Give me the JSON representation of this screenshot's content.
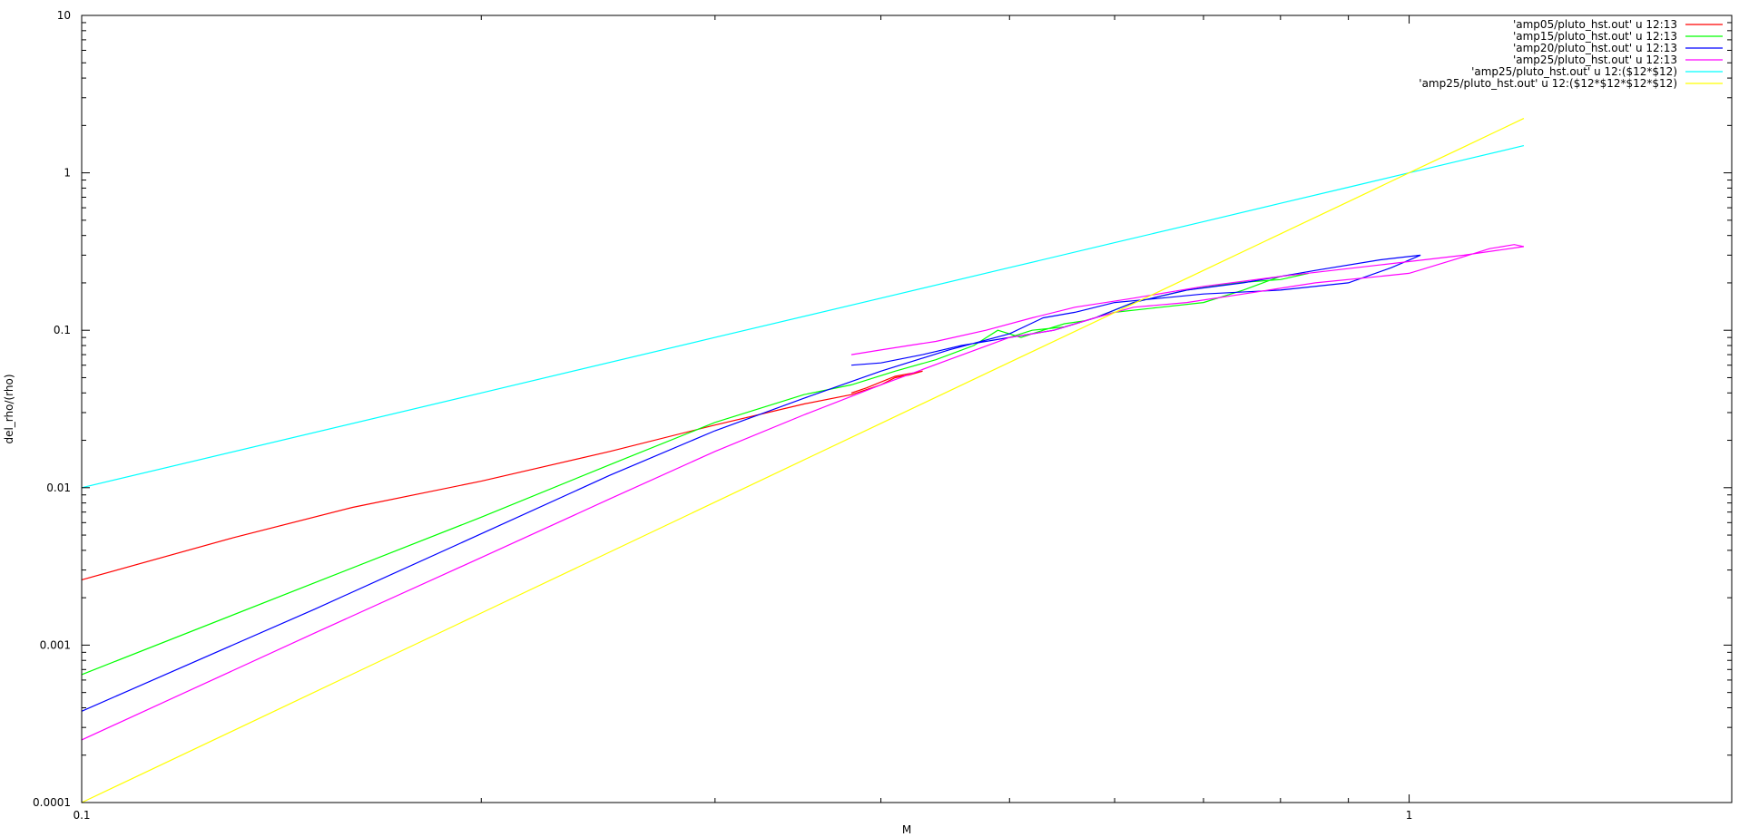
{
  "chart_data": {
    "type": "line",
    "title": "",
    "xlabel": "M",
    "ylabel": "del_rho/(rho)",
    "xscale": "log",
    "yscale": "log",
    "xlim": [
      0.1,
      1.75
    ],
    "ylim": [
      0.0001,
      10
    ],
    "grid": false,
    "legend_position": "top-right",
    "xticks": [
      {
        "value": 0.1,
        "label": "0.1"
      },
      {
        "value": 1,
        "label": "1"
      }
    ],
    "xminor": [
      0.2,
      0.3,
      0.4,
      0.5,
      0.6,
      0.7,
      0.8,
      0.9
    ],
    "yticks": [
      {
        "value": 0.0001,
        "label": "0.0001"
      },
      {
        "value": 0.001,
        "label": "0.001"
      },
      {
        "value": 0.01,
        "label": "0.01"
      },
      {
        "value": 0.1,
        "label": "0.1"
      },
      {
        "value": 1,
        "label": "1"
      },
      {
        "value": 10,
        "label": "10"
      }
    ],
    "series": [
      {
        "name": "'amp05/pluto_hst.out' u 12:13",
        "color": "#ff0000",
        "points": [
          [
            0.1,
            0.0026
          ],
          [
            0.13,
            0.0048
          ],
          [
            0.16,
            0.0075
          ],
          [
            0.2,
            0.011
          ],
          [
            0.25,
            0.017
          ],
          [
            0.3,
            0.025
          ],
          [
            0.35,
            0.034
          ],
          [
            0.38,
            0.039
          ],
          [
            0.4,
            0.045
          ],
          [
            0.41,
            0.05
          ],
          [
            0.42,
            0.052
          ],
          [
            0.43,
            0.055
          ],
          [
            0.41,
            0.051
          ],
          [
            0.39,
            0.043
          ],
          [
            0.38,
            0.04
          ]
        ]
      },
      {
        "name": "'amp15/pluto_hst.out' u 12:13",
        "color": "#00ff00",
        "points": [
          [
            0.1,
            0.00065
          ],
          [
            0.15,
            0.0025
          ],
          [
            0.2,
            0.0065
          ],
          [
            0.25,
            0.014
          ],
          [
            0.3,
            0.026
          ],
          [
            0.35,
            0.039
          ],
          [
            0.38,
            0.045
          ],
          [
            0.41,
            0.055
          ],
          [
            0.44,
            0.065
          ],
          [
            0.47,
            0.08
          ],
          [
            0.49,
            0.1
          ],
          [
            0.51,
            0.09
          ],
          [
            0.53,
            0.1
          ],
          [
            0.55,
            0.11
          ],
          [
            0.57,
            0.115
          ],
          [
            0.6,
            0.13
          ],
          [
            0.65,
            0.14
          ],
          [
            0.7,
            0.15
          ],
          [
            0.75,
            0.18
          ],
          [
            0.8,
            0.22
          ],
          [
            0.84,
            0.23
          ],
          [
            0.8,
            0.21
          ],
          [
            0.74,
            0.2
          ],
          [
            0.68,
            0.18
          ],
          [
            0.62,
            0.15
          ],
          [
            0.58,
            0.12
          ],
          [
            0.55,
            0.105
          ],
          [
            0.52,
            0.1
          ],
          [
            0.5,
            0.09
          ]
        ]
      },
      {
        "name": "'amp20/pluto_hst.out' u 12:13",
        "color": "#0000ff",
        "points": [
          [
            0.1,
            0.00038
          ],
          [
            0.15,
            0.0017
          ],
          [
            0.2,
            0.0051
          ],
          [
            0.25,
            0.012
          ],
          [
            0.3,
            0.023
          ],
          [
            0.35,
            0.037
          ],
          [
            0.4,
            0.055
          ],
          [
            0.45,
            0.075
          ],
          [
            0.5,
            0.095
          ],
          [
            0.53,
            0.12
          ],
          [
            0.56,
            0.13
          ],
          [
            0.6,
            0.15
          ],
          [
            0.65,
            0.16
          ],
          [
            0.7,
            0.17
          ],
          [
            0.8,
            0.18
          ],
          [
            0.9,
            0.2
          ],
          [
            0.97,
            0.25
          ],
          [
            1.02,
            0.3
          ],
          [
            0.95,
            0.28
          ],
          [
            0.85,
            0.24
          ],
          [
            0.75,
            0.2
          ],
          [
            0.68,
            0.18
          ],
          [
            0.62,
            0.15
          ],
          [
            0.58,
            0.12
          ],
          [
            0.54,
            0.1
          ],
          [
            0.5,
            0.09
          ],
          [
            0.46,
            0.08
          ],
          [
            0.43,
            0.07
          ],
          [
            0.4,
            0.062
          ],
          [
            0.38,
            0.06
          ]
        ]
      },
      {
        "name": "'amp25/pluto_hst.out' u 12:13",
        "color": "#ff00ff",
        "points": [
          [
            0.1,
            0.00025
          ],
          [
            0.15,
            0.0012
          ],
          [
            0.2,
            0.0036
          ],
          [
            0.25,
            0.0085
          ],
          [
            0.3,
            0.017
          ],
          [
            0.35,
            0.029
          ],
          [
            0.4,
            0.045
          ],
          [
            0.45,
            0.065
          ],
          [
            0.5,
            0.09
          ],
          [
            0.54,
            0.1
          ],
          [
            0.58,
            0.12
          ],
          [
            0.62,
            0.14
          ],
          [
            0.68,
            0.15
          ],
          [
            0.75,
            0.17
          ],
          [
            0.85,
            0.2
          ],
          [
            0.95,
            0.22
          ],
          [
            1.0,
            0.23
          ],
          [
            1.08,
            0.28
          ],
          [
            1.15,
            0.33
          ],
          [
            1.2,
            0.35
          ],
          [
            1.22,
            0.34
          ],
          [
            1.1,
            0.3
          ],
          [
            0.95,
            0.26
          ],
          [
            0.8,
            0.22
          ],
          [
            0.7,
            0.19
          ],
          [
            0.62,
            0.16
          ],
          [
            0.56,
            0.14
          ],
          [
            0.52,
            0.12
          ],
          [
            0.48,
            0.1
          ],
          [
            0.44,
            0.085
          ],
          [
            0.42,
            0.08
          ],
          [
            0.4,
            0.075
          ],
          [
            0.38,
            0.07
          ]
        ]
      },
      {
        "name": "'amp25/pluto_hst.out' u 12:($12*$12)",
        "color": "#00ffff",
        "points": [
          [
            0.1,
            0.01
          ],
          [
            0.2,
            0.04
          ],
          [
            0.3,
            0.09
          ],
          [
            0.4,
            0.16
          ],
          [
            0.5,
            0.25
          ],
          [
            0.6,
            0.36
          ],
          [
            0.7,
            0.49
          ],
          [
            0.8,
            0.64
          ],
          [
            0.9,
            0.81
          ],
          [
            1.0,
            1.0
          ],
          [
            1.1,
            1.21
          ],
          [
            1.22,
            1.4884
          ]
        ]
      },
      {
        "name": "'amp25/pluto_hst.out' u 12:($12*$12*$12*$12)",
        "color": "#ffff00",
        "points": [
          [
            0.1,
            0.0001
          ],
          [
            0.2,
            0.0016
          ],
          [
            0.3,
            0.0081
          ],
          [
            0.4,
            0.0256
          ],
          [
            0.5,
            0.0625
          ],
          [
            0.6,
            0.1296
          ],
          [
            0.7,
            0.2401
          ],
          [
            0.8,
            0.4096
          ],
          [
            0.9,
            0.6561
          ],
          [
            1.0,
            1.0
          ],
          [
            1.1,
            1.4641
          ],
          [
            1.22,
            2.2153
          ]
        ]
      }
    ]
  }
}
